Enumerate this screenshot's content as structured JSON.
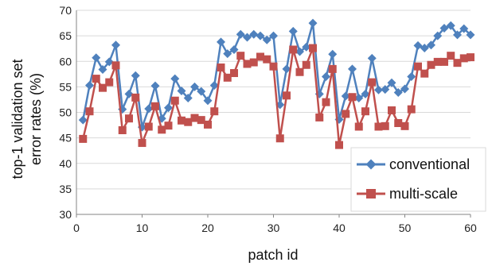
{
  "chart_data": {
    "type": "line",
    "xlabel": "patch id",
    "ylabel_lines": [
      "top-1 validation set",
      "error rates (%)"
    ],
    "xlim": [
      0,
      60
    ],
    "ylim": [
      30,
      70
    ],
    "xticks": [
      0,
      10,
      20,
      30,
      40,
      50,
      60
    ],
    "yticks": [
      30,
      35,
      40,
      45,
      50,
      55,
      60,
      65,
      70
    ],
    "legend_position": "bottom-right",
    "x": [
      1,
      2,
      3,
      4,
      5,
      6,
      7,
      8,
      9,
      10,
      11,
      12,
      13,
      14,
      15,
      16,
      17,
      18,
      19,
      20,
      21,
      22,
      23,
      24,
      25,
      26,
      27,
      28,
      29,
      30,
      31,
      32,
      33,
      34,
      35,
      36,
      37,
      38,
      39,
      40,
      41,
      42,
      43,
      44,
      45,
      46,
      47,
      48,
      49,
      50,
      51,
      52,
      53,
      54,
      55,
      56,
      57,
      58,
      59,
      60
    ],
    "series": [
      {
        "name": "conventional",
        "color": "#4f81bd",
        "marker": "diamond",
        "values": [
          48.5,
          55.3,
          60.7,
          58.4,
          59.9,
          63.2,
          50.6,
          53.6,
          57.2,
          47.1,
          50.7,
          55.2,
          48.8,
          50.9,
          56.6,
          54.2,
          52.8,
          55.0,
          54.1,
          52.3,
          55.3,
          63.8,
          61.5,
          62.3,
          65.3,
          64.7,
          65.3,
          65.0,
          64.2,
          65.0,
          51.5,
          58.5,
          65.9,
          61.9,
          62.8,
          67.5,
          53.6,
          57.0,
          61.4,
          48.6,
          53.2,
          58.5,
          52.8,
          53.6,
          60.6,
          54.4,
          54.5,
          55.8,
          53.9,
          54.6,
          57.0,
          63.1,
          62.6,
          63.2,
          65.0,
          66.5,
          67.0,
          65.2,
          66.4,
          65.2
        ]
      },
      {
        "name": "multi-scale",
        "color": "#c0504d",
        "marker": "square",
        "values": [
          44.8,
          50.2,
          56.6,
          54.8,
          55.9,
          59.2,
          46.5,
          48.8,
          52.9,
          44.0,
          47.2,
          51.2,
          46.6,
          47.4,
          52.3,
          48.4,
          48.1,
          48.9,
          48.5,
          47.6,
          50.2,
          58.8,
          56.8,
          57.7,
          61.1,
          59.5,
          59.8,
          60.9,
          60.4,
          59.0,
          44.9,
          53.3,
          62.3,
          57.9,
          59.3,
          62.6,
          49.0,
          52.0,
          58.5,
          43.6,
          49.7,
          53.0,
          47.2,
          50.2,
          55.9,
          47.2,
          47.3,
          50.4,
          47.9,
          47.3,
          50.6,
          59.0,
          57.6,
          59.3,
          59.9,
          59.9,
          61.1,
          59.7,
          60.6,
          60.8
        ]
      }
    ]
  }
}
